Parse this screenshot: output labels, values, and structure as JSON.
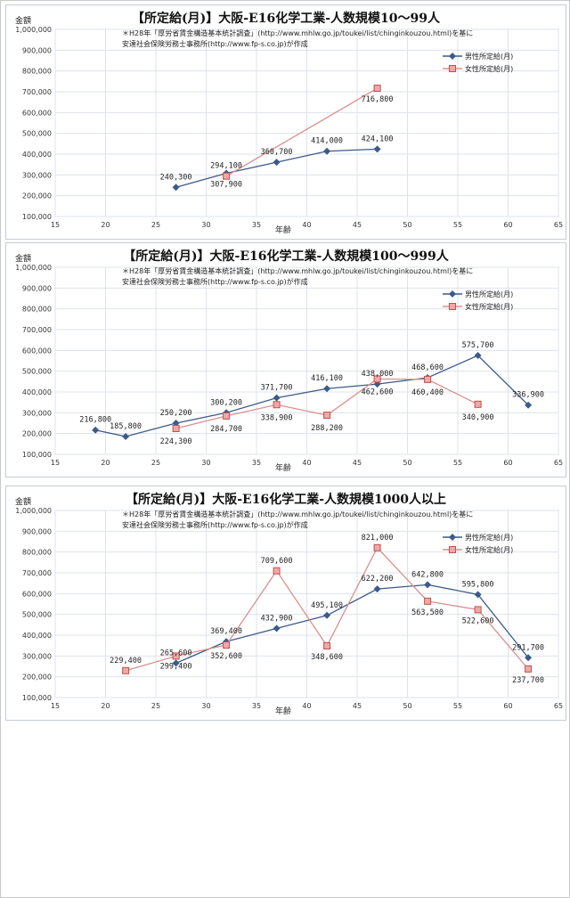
{
  "colors": {
    "male": "#3c5a8a",
    "female": "#d9908e",
    "female_marker": "#c0504d",
    "grid": "#dde3ec",
    "axis": "#8a98ab"
  },
  "chart_data": [
    {
      "type": "line",
      "title": "【所定給(月)】大阪-E16化学工業-人数規模10～99人",
      "ylabel": "金額",
      "xlabel": "年齢",
      "note_line1": "＊H28年「厚労省賃金構造基本統計調査」(http://www.mhlw.go.jp/toukei/list/chinginkouzou.html)を基に",
      "note_line2": "安達社会保険労務士事務所(http://www.fp-s.co.jp)が作成",
      "xlim": [
        15,
        65
      ],
      "ylim": [
        100000,
        1000000
      ],
      "xticks": [
        "15",
        "20",
        "25",
        "30",
        "35",
        "40",
        "45",
        "50",
        "55",
        "60",
        "65"
      ],
      "yticks": [
        "100,000",
        "200,000",
        "300,000",
        "400,000",
        "500,000",
        "600,000",
        "700,000",
        "800,000",
        "900,000",
        "1,000,000"
      ],
      "legend_position": "top-right",
      "series": [
        {
          "name": "男性所定給(月)",
          "x": [
            27,
            32,
            37,
            42,
            47
          ],
          "y": [
            240300,
            307900,
            360700,
            414000,
            424100
          ],
          "labels": [
            "240,300",
            "307,900",
            "360,700",
            "414,000",
            "424,100"
          ]
        },
        {
          "name": "女性所定給(月)",
          "x": [
            32,
            47
          ],
          "y": [
            294100,
            716800
          ],
          "labels": [
            "294,100",
            "716,800"
          ]
        }
      ]
    },
    {
      "type": "line",
      "title": "【所定給(月)】大阪-E16化学工業-人数規模100～999人",
      "ylabel": "金額",
      "xlabel": "年齢",
      "note_line1": "＊H28年「厚労省賃金構造基本統計調査」(http://www.mhlw.go.jp/toukei/list/chinginkouzou.html)を基に",
      "note_line2": "安達社会保険労務士事務所(http://www.fp-s.co.jp)が作成",
      "xlim": [
        15,
        65
      ],
      "ylim": [
        100000,
        1000000
      ],
      "xticks": [
        "15",
        "20",
        "25",
        "30",
        "35",
        "40",
        "45",
        "50",
        "55",
        "60",
        "65"
      ],
      "yticks": [
        "100,000",
        "200,000",
        "300,000",
        "400,000",
        "500,000",
        "600,000",
        "700,000",
        "800,000",
        "900,000",
        "1,000,000"
      ],
      "legend_position": "top-right",
      "series": [
        {
          "name": "男性所定給(月)",
          "x": [
            19,
            22,
            27,
            32,
            37,
            42,
            47,
            52,
            57,
            62
          ],
          "y": [
            216800,
            185800,
            250200,
            300200,
            371700,
            416100,
            438000,
            468600,
            575700,
            336900
          ],
          "labels": [
            "216,800",
            "185,800",
            "250,200",
            "300,200",
            "371,700",
            "416,100",
            "438,000",
            "468,600",
            "575,700",
            "336,900"
          ]
        },
        {
          "name": "女性所定給(月)",
          "x": [
            27,
            32,
            37,
            42,
            47,
            52,
            57
          ],
          "y": [
            224300,
            284700,
            338900,
            288200,
            462600,
            460400,
            340900
          ],
          "labels": [
            "224,300",
            "284,700",
            "338,900",
            "288,200",
            "462,600",
            "460,400",
            "340,900"
          ]
        }
      ]
    },
    {
      "type": "line",
      "title": "【所定給(月)】大阪-E16化学工業-人数規模1000人以上",
      "ylabel": "金額",
      "xlabel": "年齢",
      "note_line1": "＊H28年「厚労省賃金構造基本統計調査」(http://www.mhlw.go.jp/toukei/list/chinginkouzou.html)を基に",
      "note_line2": "安達社会保険労務士事務所(http://www.fp-s.co.jp)が作成",
      "xlim": [
        15,
        65
      ],
      "ylim": [
        100000,
        1000000
      ],
      "xticks": [
        "15",
        "20",
        "25",
        "30",
        "35",
        "40",
        "45",
        "50",
        "55",
        "60",
        "65"
      ],
      "yticks": [
        "100,000",
        "200,000",
        "300,000",
        "400,000",
        "500,000",
        "600,000",
        "700,000",
        "800,000",
        "900,000",
        "1,000,000"
      ],
      "legend_position": "top-right",
      "series": [
        {
          "name": "男性所定給(月)",
          "x": [
            27,
            32,
            37,
            42,
            47,
            52,
            57,
            62
          ],
          "y": [
            265600,
            369400,
            432900,
            495100,
            622200,
            642800,
            595800,
            291700
          ],
          "labels": [
            "265,600",
            "369,400",
            "432,900",
            "495,100",
            "622,200",
            "642,800",
            "595,800",
            "291,700"
          ]
        },
        {
          "name": "女性所定給(月)",
          "x": [
            22,
            27,
            32,
            37,
            42,
            47,
            52,
            57,
            62
          ],
          "y": [
            229400,
            299400,
            352600,
            709600,
            348600,
            821000,
            563500,
            522600,
            237700
          ],
          "labels": [
            "229,400",
            "299,400",
            "352,600",
            "709,600",
            "348,600",
            "821,000",
            "563,500",
            "522,600",
            "237,700"
          ]
        }
      ]
    }
  ]
}
